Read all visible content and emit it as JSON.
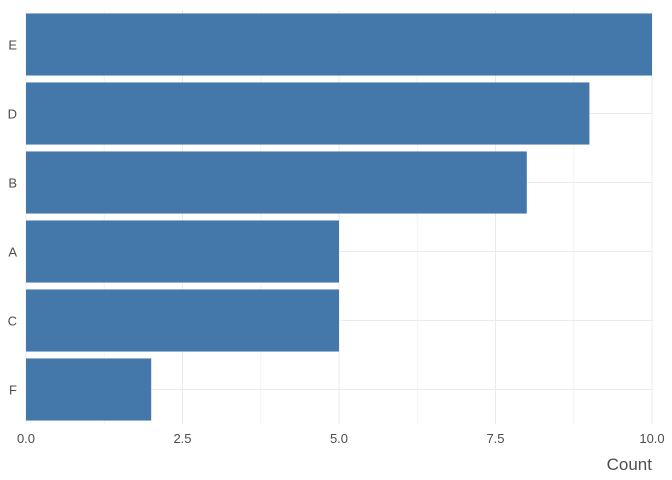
{
  "chart_data": {
    "type": "bar",
    "orientation": "horizontal",
    "categories": [
      "E",
      "D",
      "B",
      "A",
      "C",
      "F"
    ],
    "values": [
      10,
      9,
      8,
      5,
      5,
      2
    ],
    "title": "",
    "xlabel": "Count",
    "ylabel": "",
    "xlim": [
      0,
      10
    ],
    "x_ticks": [
      "0.0",
      "2.5",
      "5.0",
      "7.5",
      "10.0"
    ],
    "grid": true,
    "legend": "none",
    "bar_color": "#4477AA"
  }
}
